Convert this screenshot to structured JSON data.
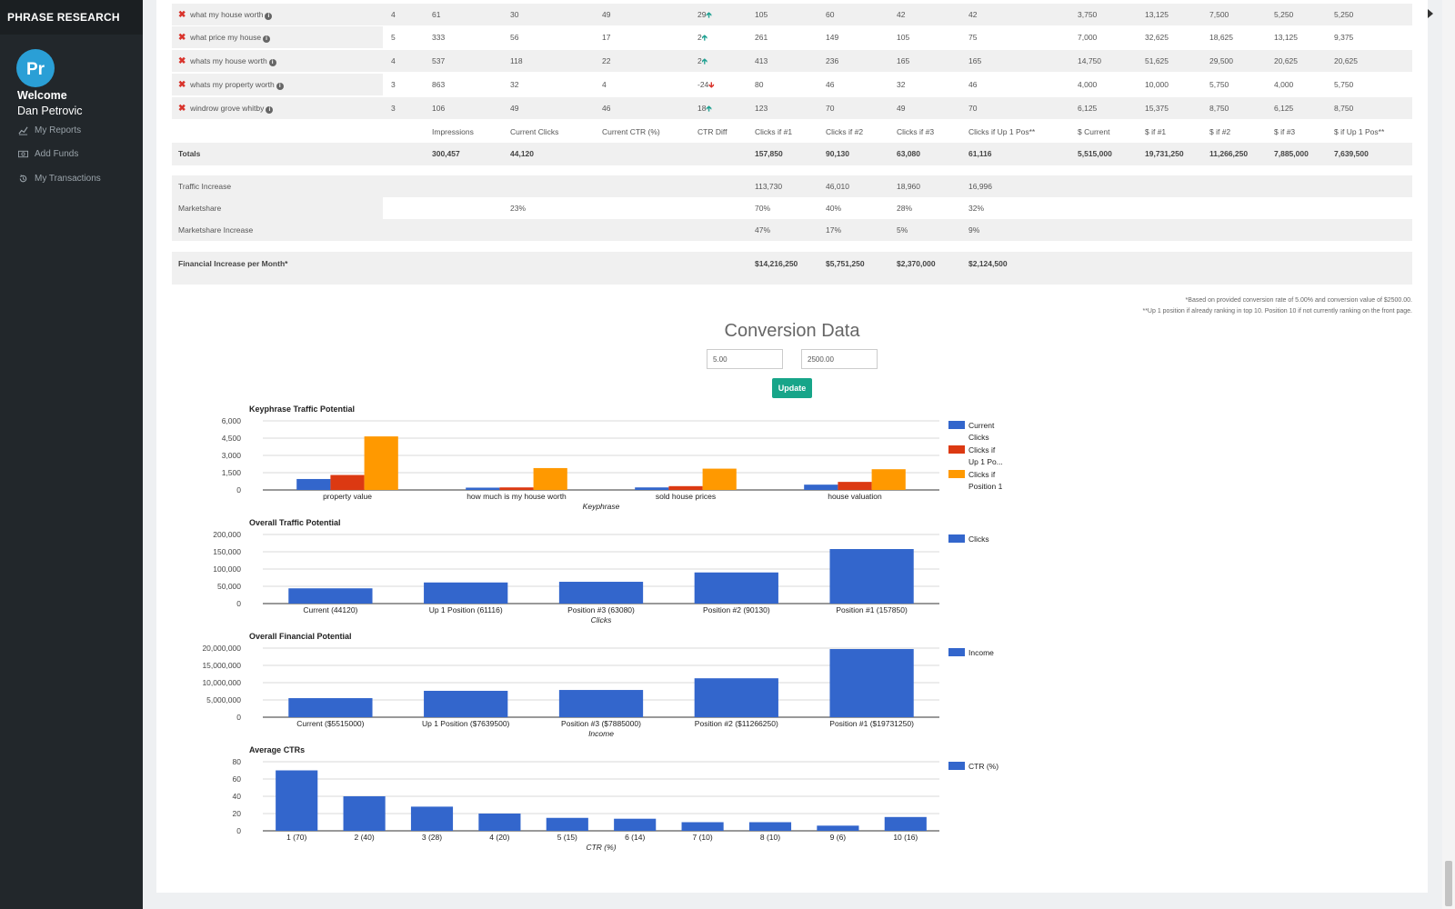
{
  "sidebar": {
    "brand": "PHRASE RESEARCH",
    "welcome": "Welcome",
    "user_name": "Dan Petrovic",
    "items": [
      {
        "label": "My Reports",
        "icon": "line-chart-icon"
      },
      {
        "label": "Add Funds",
        "icon": "money-icon"
      },
      {
        "label": "My Transactions",
        "icon": "history-icon"
      }
    ]
  },
  "table": {
    "rows": [
      {
        "keyword": "what my house worth",
        "c1": "4",
        "c2": "61",
        "c3": "30",
        "c4": "49",
        "diff": "29",
        "dir": "up",
        "c6": "105",
        "c7": "60",
        "c8": "42",
        "c9": "42",
        "c10": "3,750",
        "c11": "13,125",
        "c12": "7,500",
        "c13": "5,250",
        "c14": "5,250"
      },
      {
        "keyword": "what price my house",
        "c1": "5",
        "c2": "333",
        "c3": "56",
        "c4": "17",
        "diff": "2",
        "dir": "up",
        "c6": "261",
        "c7": "149",
        "c8": "105",
        "c9": "75",
        "c10": "7,000",
        "c11": "32,625",
        "c12": "18,625",
        "c13": "13,125",
        "c14": "9,375"
      },
      {
        "keyword": "whats my house worth",
        "c1": "4",
        "c2": "537",
        "c3": "118",
        "c4": "22",
        "diff": "2",
        "dir": "up",
        "c6": "413",
        "c7": "236",
        "c8": "165",
        "c9": "165",
        "c10": "14,750",
        "c11": "51,625",
        "c12": "29,500",
        "c13": "20,625",
        "c14": "20,625"
      },
      {
        "keyword": "whats my property worth",
        "c1": "3",
        "c2": "863",
        "c3": "32",
        "c4": "4",
        "diff": "-24",
        "dir": "down",
        "c6": "80",
        "c7": "46",
        "c8": "32",
        "c9": "46",
        "c10": "4,000",
        "c11": "10,000",
        "c12": "5,750",
        "c13": "4,000",
        "c14": "5,750"
      },
      {
        "keyword": "windrow grove whitby",
        "c1": "3",
        "c2": "106",
        "c3": "49",
        "c4": "46",
        "diff": "18",
        "dir": "up",
        "c6": "123",
        "c7": "70",
        "c8": "49",
        "c9": "70",
        "c10": "6,125",
        "c11": "15,375",
        "c12": "8,750",
        "c13": "6,125",
        "c14": "8,750"
      }
    ],
    "headers": {
      "impressions": "Impressions",
      "current_clicks": "Current Clicks",
      "current_ctr": "Current CTR (%)",
      "ctr_diff": "CTR Diff",
      "clicks1": "Clicks if #1",
      "clicks2": "Clicks if #2",
      "clicks3": "Clicks if #3",
      "clicks_up": "Clicks if Up 1 Pos**",
      "d_current": "$ Current",
      "d1": "$ if #1",
      "d2": "$ if #2",
      "d3": "$ if #3",
      "d_up": "$ if Up 1 Pos**"
    },
    "totals": {
      "label": "Totals",
      "impressions": "300,457",
      "current_clicks": "44,120",
      "clicks1": "157,850",
      "clicks2": "90,130",
      "clicks3": "63,080",
      "clicks_up": "61,116",
      "d_current": "5,515,000",
      "d1": "19,731,250",
      "d2": "11,266,250",
      "d3": "7,885,000",
      "d_up": "7,639,500"
    },
    "traffic_increase": {
      "label": "Traffic Increase",
      "c1": "113,730",
      "c2": "46,010",
      "c3": "18,960",
      "c4": "16,996"
    },
    "marketshare": {
      "label": "Marketshare",
      "current": "23%",
      "c1": "70%",
      "c2": "40%",
      "c3": "28%",
      "c4": "32%"
    },
    "marketshare_increase": {
      "label": "Marketshare Increase",
      "c1": "47%",
      "c2": "17%",
      "c3": "5%",
      "c4": "9%"
    },
    "financial_increase": {
      "label": "Financial Increase per Month*",
      "c1": "$14,216,250",
      "c2": "$5,751,250",
      "c3": "$2,370,000",
      "c4": "$2,124,500"
    }
  },
  "footnotes": {
    "line1": "*Based on provided conversion rate of 5.00% and conversion value of $2500.00.",
    "line2": "**Up 1 position if already ranking in top 10. Position 10 if not currently ranking on the front page."
  },
  "conversion": {
    "title": "Conversion Data",
    "rate": "5.00",
    "value": "2500.00",
    "update_label": "Update"
  },
  "colors": {
    "blue": "#3366cc",
    "red": "#dc3912",
    "orange": "#ff9900",
    "teal": "#17a589"
  },
  "chart_data": [
    {
      "type": "bar",
      "title": "Keyphrase Traffic Potential",
      "xlabel": "Keyphrase",
      "ylabel": "",
      "ylim": [
        0,
        6000
      ],
      "yticks": [
        "0",
        "1,500",
        "3,000",
        "4,500",
        "6,000"
      ],
      "ytick_values": [
        0,
        1500,
        3000,
        4500,
        6000
      ],
      "categories": [
        "property value",
        "how much is my house worth",
        "sold house prices",
        "house valuation"
      ],
      "series": [
        {
          "name": "Current Clicks",
          "legend_lines": [
            "Current",
            "Clicks"
          ],
          "color": "#3366cc",
          "values": [
            950,
            200,
            220,
            460
          ]
        },
        {
          "name": "Clicks if Up 1 Po...",
          "legend_lines": [
            "Clicks if",
            "Up 1 Po..."
          ],
          "color": "#dc3912",
          "values": [
            1300,
            220,
            330,
            700
          ]
        },
        {
          "name": "Clicks if Position 1",
          "legend_lines": [
            "Clicks if",
            "Position 1"
          ],
          "color": "#ff9900",
          "values": [
            4650,
            1900,
            1850,
            1800
          ]
        }
      ],
      "grid": true,
      "legend": "right"
    },
    {
      "type": "bar",
      "title": "Overall Traffic Potential",
      "xlabel": "Clicks",
      "ylim": [
        0,
        200000
      ],
      "yticks": [
        "0",
        "50,000",
        "100,000",
        "150,000",
        "200,000"
      ],
      "ytick_values": [
        0,
        50000,
        100000,
        150000,
        200000
      ],
      "categories": [
        "Current (44120)",
        "Up 1 Position (61116)",
        "Position #3 (63080)",
        "Position #2 (90130)",
        "Position #1 (157850)"
      ],
      "series": [
        {
          "name": "Clicks",
          "legend_lines": [
            "Clicks"
          ],
          "color": "#3366cc",
          "values": [
            44120,
            61116,
            63080,
            90130,
            157850
          ]
        }
      ],
      "grid": true,
      "legend": "right"
    },
    {
      "type": "bar",
      "title": "Overall Financial Potential",
      "xlabel": "Income",
      "ylim": [
        0,
        20000000
      ],
      "yticks": [
        "0",
        "5,000,000",
        "10,000,000",
        "15,000,000",
        "20,000,000"
      ],
      "ytick_values": [
        0,
        5000000,
        10000000,
        15000000,
        20000000
      ],
      "categories": [
        "Current ($5515000)",
        "Up 1 Position ($7639500)",
        "Position #3 ($7885000)",
        "Position #2 ($11266250)",
        "Position #1 ($19731250)"
      ],
      "series": [
        {
          "name": "Income",
          "legend_lines": [
            "Income"
          ],
          "color": "#3366cc",
          "values": [
            5515000,
            7639500,
            7885000,
            11266250,
            19731250
          ]
        }
      ],
      "grid": true,
      "legend": "right"
    },
    {
      "type": "bar",
      "title": "Average CTRs",
      "xlabel": "CTR (%)",
      "ylim": [
        0,
        80
      ],
      "yticks": [
        "0",
        "20",
        "40",
        "60",
        "80"
      ],
      "ytick_values": [
        0,
        20,
        40,
        60,
        80
      ],
      "categories": [
        "1 (70)",
        "2 (40)",
        "3 (28)",
        "4 (20)",
        "5 (15)",
        "6 (14)",
        "7 (10)",
        "8 (10)",
        "9 (6)",
        "10 (16)"
      ],
      "series": [
        {
          "name": "CTR (%)",
          "legend_lines": [
            "CTR (%)"
          ],
          "color": "#3366cc",
          "values": [
            70,
            40,
            28,
            20,
            15,
            14,
            10,
            10,
            6,
            16
          ]
        }
      ],
      "grid": true,
      "legend": "right"
    }
  ]
}
